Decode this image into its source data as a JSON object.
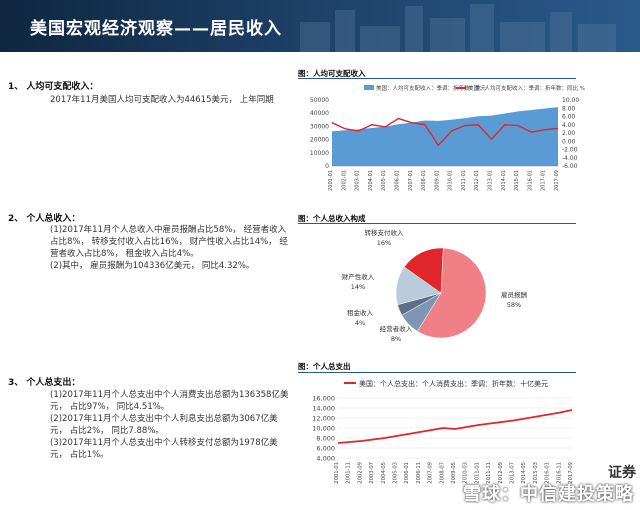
{
  "header": {
    "title": "美国宏观经济观察——居民收入"
  },
  "sections": [
    {
      "heading": "1、 人均可支配收入：",
      "paragraphs": [
        "2017年11月美国人均可支配收入为44615美元， 上年同期"
      ]
    },
    {
      "heading": "2、 个人总收入：",
      "paragraphs": [
        "(1)2017年11月个人总收入中雇员报酬占比58%， 经营者收入占比8%， 转移支付收入占比16%， 财产性收入占比14%， 经营者收入占比8%， 租金收入占比4%。",
        "(2)其中， 雇员报酬为104336亿美元， 同比4.32%。"
      ]
    },
    {
      "heading": "3、 个人总支出：",
      "paragraphs": [
        "(1)2017年11月个人总支出中个人消费支出总额为136358亿美元， 占比97%， 同比4.51%。",
        "(2)2017年11月个人总支出中个人利息支出总额为3067亿美元， 占比2%， 同比7.88%。",
        "(3)2017年11月个人总支出中个人转移支付总额为1978亿美元， 占比1%。"
      ]
    }
  ],
  "chart_data": [
    {
      "type": "area",
      "caption": "图：人均可支配收入",
      "legend": [
        "美国：人均可支配收入：季调：折年数：美元",
        "美国：人均可支配收入：季调：折年数：同比 %"
      ],
      "x": [
        "2001-01",
        "2002-01",
        "2003-01",
        "2004-01",
        "2005-01",
        "2006-01",
        "2007-01",
        "2008-01",
        "2009-01",
        "2010-01",
        "2011-01",
        "2012-01",
        "2013-01",
        "2014-01",
        "2015-01",
        "2016-01",
        "2017-01",
        "2017-09"
      ],
      "series": [
        {
          "name": "美国：人均可支配收入：季调：折年数：美元",
          "axis": "left",
          "values": [
            26200,
            27100,
            27700,
            28800,
            29900,
            31600,
            33000,
            34500,
            34200,
            35000,
            36300,
            37700,
            38200,
            39800,
            41400,
            42400,
            43600,
            44615
          ]
        },
        {
          "name": "美国：人均可支配收入：季调：折年数：同比 %",
          "axis": "right",
          "values": [
            4.5,
            3.0,
            2.5,
            4.0,
            3.5,
            5.5,
            4.5,
            4.0,
            -1.0,
            2.5,
            3.8,
            4.0,
            0.5,
            4.0,
            3.8,
            2.2,
            2.8,
            3.1
          ]
        }
      ],
      "ylim_left": [
        0,
        50000
      ],
      "yticks_left": [
        "50000",
        "40000",
        "30000",
        "20000",
        "10000",
        "0"
      ],
      "ylim_right": [
        -6,
        10
      ],
      "yticks_right": [
        "10.00",
        "8.00",
        "6.00",
        "4.00",
        "2.00",
        "0.00",
        "-2.00",
        "-4.00",
        "-6.00"
      ],
      "colors": {
        "area": "#5b9bd5",
        "line": "#e0262b"
      }
    },
    {
      "type": "pie",
      "caption": "图：个人总收入构成",
      "slices": [
        {
          "label": "雇员报酬",
          "pct": "58%",
          "value": 58,
          "color": "#f07f86"
        },
        {
          "label": "经营者收入",
          "pct": "8%",
          "value": 8,
          "color": "#7e96b3"
        },
        {
          "label": "租金收入",
          "pct": "4%",
          "value": 4,
          "color": "#5d6f86"
        },
        {
          "label": "财产性收入",
          "pct": "14%",
          "value": 14,
          "color": "#b9cbdc"
        },
        {
          "label": "转移支付收入",
          "pct": "16%",
          "value": 16,
          "color": "#e0262b"
        }
      ]
    },
    {
      "type": "line",
      "caption": "图：个人总支出",
      "legend": "美国：个人总支出：个人消费支出：季调：折年数：十亿美元",
      "x": [
        "2001-01",
        "2001-11",
        "2002-09",
        "2003-07",
        "2004-05",
        "2005-03",
        "2006-01",
        "2006-11",
        "2007-09",
        "2008-07",
        "2009-05",
        "2010-03",
        "2011-01",
        "2011-11",
        "2012-09",
        "2013-07",
        "2014-05",
        "2015-03",
        "2016-01",
        "2016-11",
        "2017-09"
      ],
      "values": [
        7000,
        7200,
        7400,
        7700,
        8000,
        8400,
        8800,
        9200,
        9600,
        10000,
        9800,
        10200,
        10600,
        10900,
        11200,
        11500,
        11900,
        12300,
        12700,
        13100,
        13600
      ],
      "ylim": [
        4000,
        16000
      ],
      "yticks": [
        "16,000",
        "14,000",
        "12,000",
        "10,000",
        "8,000",
        "6,000",
        "4,000"
      ],
      "color": "#e0262b"
    }
  ],
  "footer": {
    "brand": "证券",
    "watermark": "雪球：中信建投策略"
  }
}
